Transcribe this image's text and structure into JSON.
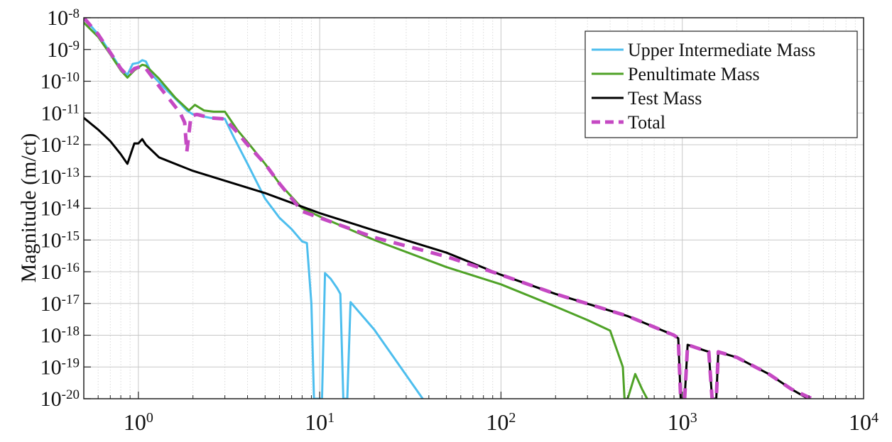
{
  "chart_data": {
    "type": "line",
    "title": "",
    "xlabel": "",
    "ylabel": "Magnitude (m/ct)",
    "xscale": "log",
    "yscale": "log",
    "xlim": [
      0.5,
      10000
    ],
    "ylim": [
      1e-20,
      1e-08
    ],
    "grid": true,
    "legend_position": "top-right",
    "x_ticks": [
      {
        "base": "10",
        "exp": "0",
        "value": 1
      },
      {
        "base": "10",
        "exp": "1",
        "value": 10
      },
      {
        "base": "10",
        "exp": "2",
        "value": 100
      },
      {
        "base": "10",
        "exp": "3",
        "value": 1000
      },
      {
        "base": "10",
        "exp": "4",
        "value": 10000
      }
    ],
    "y_ticks": [
      {
        "base": "10",
        "exp": "-8",
        "value": 1e-08
      },
      {
        "base": "10",
        "exp": "-9",
        "value": 1e-09
      },
      {
        "base": "10",
        "exp": "-10",
        "value": 1e-10
      },
      {
        "base": "10",
        "exp": "-11",
        "value": 1e-11
      },
      {
        "base": "10",
        "exp": "-12",
        "value": 1e-12
      },
      {
        "base": "10",
        "exp": "-13",
        "value": 1e-13
      },
      {
        "base": "10",
        "exp": "-14",
        "value": 1e-14
      },
      {
        "base": "10",
        "exp": "-15",
        "value": 1e-15
      },
      {
        "base": "10",
        "exp": "-16",
        "value": 1e-16
      },
      {
        "base": "10",
        "exp": "-17",
        "value": 1e-17
      },
      {
        "base": "10",
        "exp": "-18",
        "value": 1e-18
      },
      {
        "base": "10",
        "exp": "-19",
        "value": 1e-19
      },
      {
        "base": "10",
        "exp": "-20",
        "value": 1e-20
      }
    ],
    "series": [
      {
        "name": "Upper Intermediate Mass",
        "color": "#4dbeee",
        "dash": "solid",
        "points": [
          [
            0.5,
            1e-08
          ],
          [
            0.6,
            3e-09
          ],
          [
            0.7,
            8e-10
          ],
          [
            0.8,
            2.5e-10
          ],
          [
            0.87,
            1.6e-10
          ],
          [
            0.93,
            3.5e-10
          ],
          [
            1.0,
            3.8e-10
          ],
          [
            1.05,
            4.6e-10
          ],
          [
            1.1,
            4.2e-10
          ],
          [
            1.2,
            1.5e-10
          ],
          [
            1.4,
            6e-11
          ],
          [
            1.7,
            2e-11
          ],
          [
            1.85,
            1.2e-11
          ],
          [
            2.0,
            9e-12
          ],
          [
            2.5,
            7e-12
          ],
          [
            3.0,
            6.5e-12
          ],
          [
            3.4,
            1.5e-12
          ],
          [
            4.0,
            2.5e-13
          ],
          [
            5.0,
            2e-14
          ],
          [
            6.0,
            5e-15
          ],
          [
            7.0,
            2.2e-15
          ],
          [
            8.0,
            9e-16
          ],
          [
            8.5,
            8e-16
          ],
          [
            9.0,
            1e-17
          ],
          [
            9.3,
            1e-20
          ],
          [
            10.3,
            1e-20
          ],
          [
            10.7,
            9e-17
          ],
          [
            11.5,
            6e-17
          ],
          [
            12.5,
            3e-17
          ],
          [
            13.0,
            2e-17
          ],
          [
            13.5,
            1e-20
          ],
          [
            14.2,
            1e-20
          ],
          [
            14.8,
            1.1e-17
          ],
          [
            20,
            1.5e-18
          ],
          [
            37,
            1e-20
          ]
        ]
      },
      {
        "name": "Penultimate Mass",
        "color": "#4fa227",
        "dash": "solid",
        "points": [
          [
            0.5,
            7e-09
          ],
          [
            0.6,
            2.5e-09
          ],
          [
            0.7,
            7e-10
          ],
          [
            0.8,
            2.2e-10
          ],
          [
            0.87,
            1.3e-10
          ],
          [
            0.95,
            2.2e-10
          ],
          [
            1.05,
            3.3e-10
          ],
          [
            1.1,
            3.1e-10
          ],
          [
            1.3,
            1.2e-10
          ],
          [
            1.6,
            3e-11
          ],
          [
            1.9,
            1.2e-11
          ],
          [
            2.05,
            1.8e-11
          ],
          [
            2.3,
            1.2e-11
          ],
          [
            2.6,
            1.1e-11
          ],
          [
            3.0,
            1.1e-11
          ],
          [
            3.5,
            3e-12
          ],
          [
            4.0,
            1.2e-12
          ],
          [
            5.0,
            2.5e-13
          ],
          [
            6.0,
            6e-14
          ],
          [
            8.0,
            1e-14
          ],
          [
            10,
            5.5e-15
          ],
          [
            20,
            1e-15
          ],
          [
            50,
            1.4e-16
          ],
          [
            100,
            4e-17
          ],
          [
            200,
            8e-18
          ],
          [
            300,
            3e-18
          ],
          [
            400,
            1.4e-18
          ],
          [
            470,
            1e-19
          ],
          [
            480,
            1e-20
          ],
          [
            500,
            1e-20
          ],
          [
            550,
            6e-20
          ],
          [
            600,
            2e-20
          ],
          [
            640,
            1e-20
          ]
        ]
      },
      {
        "name": "Test Mass",
        "color": "#000000",
        "dash": "solid",
        "points": [
          [
            0.5,
            7e-12
          ],
          [
            0.6,
            3e-12
          ],
          [
            0.7,
            1.3e-12
          ],
          [
            0.8,
            5e-13
          ],
          [
            0.87,
            2.5e-13
          ],
          [
            0.95,
            1.1e-12
          ],
          [
            1.0,
            1.1e-12
          ],
          [
            1.05,
            1.5e-12
          ],
          [
            1.1,
            1e-12
          ],
          [
            1.3,
            4e-13
          ],
          [
            2.0,
            1.5e-13
          ],
          [
            5.0,
            3e-14
          ],
          [
            10,
            7e-15
          ],
          [
            20,
            2e-15
          ],
          [
            50,
            4e-16
          ],
          [
            100,
            8e-17
          ],
          [
            200,
            2e-17
          ],
          [
            500,
            4e-18
          ],
          [
            900,
            1e-18
          ],
          [
            950,
            8e-19
          ],
          [
            980,
            1e-20
          ],
          [
            1030,
            1e-20
          ],
          [
            1070,
            5e-19
          ],
          [
            1200,
            4e-19
          ],
          [
            1400,
            3e-19
          ],
          [
            1460,
            1e-20
          ],
          [
            1540,
            1e-20
          ],
          [
            1580,
            3e-19
          ],
          [
            2000,
            2e-19
          ],
          [
            3000,
            6e-20
          ],
          [
            4000,
            2e-20
          ],
          [
            4800,
            1.1e-20
          ],
          [
            5000,
            1e-20
          ]
        ]
      },
      {
        "name": "Total",
        "color": "#c549c3",
        "dash": "dashed",
        "points": [
          [
            0.5,
            1e-08
          ],
          [
            0.6,
            3e-09
          ],
          [
            0.7,
            8e-10
          ],
          [
            0.8,
            2.5e-10
          ],
          [
            0.87,
            1.5e-10
          ],
          [
            0.95,
            2.5e-10
          ],
          [
            1.05,
            3e-10
          ],
          [
            1.1,
            2.5e-10
          ],
          [
            1.3,
            7e-11
          ],
          [
            1.5,
            2.5e-11
          ],
          [
            1.7,
            1e-11
          ],
          [
            1.8,
            5e-12
          ],
          [
            1.85,
            6e-13
          ],
          [
            1.95,
            8e-12
          ],
          [
            2.1,
            9e-12
          ],
          [
            2.5,
            7e-12
          ],
          [
            3.0,
            6.5e-12
          ],
          [
            3.5,
            2.5e-12
          ],
          [
            4.0,
            1e-12
          ],
          [
            5.0,
            2.5e-13
          ],
          [
            6.0,
            6e-14
          ],
          [
            8.0,
            8e-15
          ],
          [
            10,
            5e-15
          ],
          [
            20,
            1.2e-15
          ],
          [
            50,
            3e-16
          ],
          [
            100,
            8e-17
          ],
          [
            200,
            2e-17
          ],
          [
            500,
            4e-18
          ],
          [
            900,
            1e-18
          ],
          [
            950,
            8e-19
          ],
          [
            980,
            1e-20
          ],
          [
            1030,
            1e-20
          ],
          [
            1070,
            5e-19
          ],
          [
            1200,
            4e-19
          ],
          [
            1400,
            3e-19
          ],
          [
            1460,
            1e-20
          ],
          [
            1540,
            1e-20
          ],
          [
            1580,
            3e-19
          ],
          [
            2000,
            2e-19
          ],
          [
            3000,
            6e-20
          ],
          [
            4000,
            2e-20
          ],
          [
            5000,
            1.1e-20
          ],
          [
            5300,
            1e-20
          ]
        ]
      }
    ]
  }
}
